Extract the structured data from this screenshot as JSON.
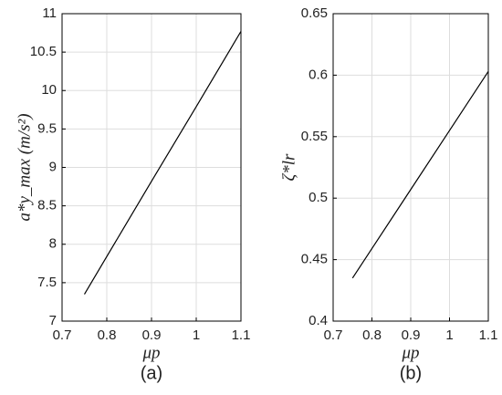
{
  "chart_data": [
    {
      "type": "line",
      "caption": "(a)",
      "xlabel": "μp",
      "ylabel": "a*y_max  (m/s²)",
      "x": [
        0.75,
        0.8,
        0.9,
        1.0,
        1.1
      ],
      "values": [
        7.35,
        7.84,
        8.82,
        9.79,
        10.77
      ],
      "color": "#000000",
      "xlim": [
        0.7,
        1.1
      ],
      "xticks": [
        0.7,
        0.8,
        0.9,
        1,
        1.1
      ],
      "ylim": [
        7,
        11
      ],
      "yticks": [
        7,
        7.5,
        8,
        8.5,
        9,
        9.5,
        10,
        10.5,
        11
      ],
      "grid": true
    },
    {
      "type": "line",
      "caption": "(b)",
      "xlabel": "μp",
      "ylabel": "ζ*lr",
      "x": [
        0.75,
        0.8,
        0.9,
        1.0,
        1.1
      ],
      "values": [
        0.435,
        0.459,
        0.507,
        0.555,
        0.603
      ],
      "color": "#000000",
      "xlim": [
        0.7,
        1.1
      ],
      "xticks": [
        0.7,
        0.8,
        0.9,
        1,
        1.1
      ],
      "ylim": [
        0.4,
        0.65
      ],
      "yticks": [
        0.4,
        0.45,
        0.5,
        0.55,
        0.6,
        0.65
      ],
      "grid": true
    }
  ]
}
